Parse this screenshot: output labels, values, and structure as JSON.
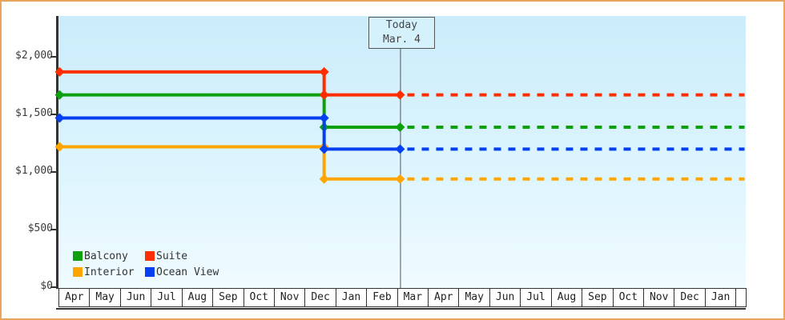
{
  "frame_color": "#e8a55b",
  "chart_data": {
    "type": "line",
    "subtype": "step-line-price-history",
    "title": "",
    "y_axis": {
      "min": 0,
      "max": 2000,
      "tick_values": [
        2000,
        1500,
        1000,
        500,
        0
      ],
      "tick_labels": [
        "$2,000",
        "$1,500",
        "$1,000",
        "$500",
        "$0"
      ]
    },
    "x_axis": {
      "months": [
        "Apr",
        "May",
        "Jun",
        "Jul",
        "Aug",
        "Sep",
        "Oct",
        "Nov",
        "Dec",
        "Jan",
        "Feb",
        "Mar",
        "Apr",
        "May",
        "Jun",
        "Jul",
        "Aug",
        "Sep",
        "Oct",
        "Nov",
        "Dec",
        "Jan"
      ]
    },
    "today": {
      "label_line1": "Today",
      "label_line2": "Mar. 4",
      "month_index": 11,
      "day": 4
    },
    "price_change": {
      "month_index": 8,
      "fraction": 0.63,
      "approx_date": "mid-December"
    },
    "series": [
      {
        "name": "Balcony",
        "color": "#0da00d",
        "price_before": 1669,
        "price_after": 1389
      },
      {
        "name": "Interior",
        "color": "#ffa500",
        "price_before": 1219,
        "price_after": 939
      },
      {
        "name": "Suite",
        "color": "#ff2e00",
        "price_before": 1869,
        "price_after": 1669
      },
      {
        "name": "Ocean View",
        "color": "#0440f0",
        "price_before": 1469,
        "price_after": 1199
      }
    ],
    "legend": {
      "rows": [
        [
          "Balcony",
          "Suite"
        ],
        [
          "Interior",
          "Ocean View"
        ]
      ],
      "position": "bottom-left-inside"
    },
    "style_notes": "solid step lines with diamond markers before today; dashed horizontal projection after today",
    "grid": "off",
    "axis_color": "#333333",
    "today_line_color": "#555555"
  }
}
